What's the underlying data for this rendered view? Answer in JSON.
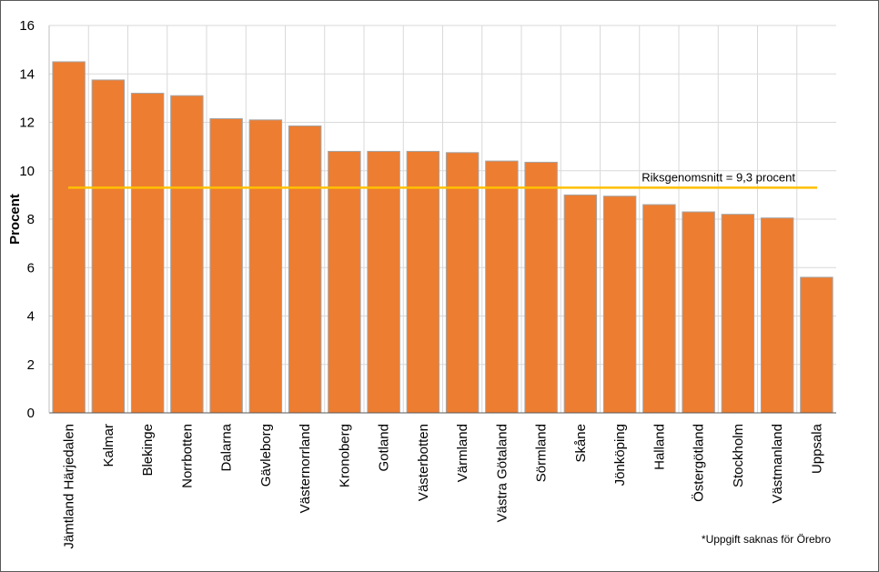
{
  "chart_data": {
    "type": "bar",
    "title": "",
    "xlabel": "",
    "ylabel": "Procent",
    "ylim": [
      0,
      16
    ],
    "yticks": [
      0,
      2,
      4,
      6,
      8,
      10,
      12,
      14,
      16
    ],
    "grid": "horizontal",
    "legend": "none",
    "categories": [
      "Jämtland Härjedalen",
      "Kalmar",
      "Blekinge",
      "Norrbotten",
      "Dalarna",
      "Gävleborg",
      "Västernorrland",
      "Kronoberg",
      "Gotland",
      "Västerbotten",
      "Värmland",
      "Västra Götaland",
      "Sörmland",
      "Skåne",
      "Jönköping",
      "Halland",
      "Östergötland",
      "Stockholm",
      "Västmanland",
      "Uppsala"
    ],
    "values": [
      14.5,
      13.75,
      13.2,
      13.1,
      12.15,
      12.1,
      11.85,
      10.8,
      10.8,
      10.8,
      10.75,
      10.4,
      10.35,
      9.0,
      8.95,
      8.6,
      8.3,
      8.2,
      8.05,
      5.6
    ],
    "reference_line": {
      "value": 9.3,
      "label": "Riksgenomsnitt = 9,3 procent",
      "color": "#FFC000"
    },
    "bar_color": "#ED7D31",
    "bar_edge_color": "#A5A5A5",
    "note": "*Uppgift saknas för Örebro"
  }
}
